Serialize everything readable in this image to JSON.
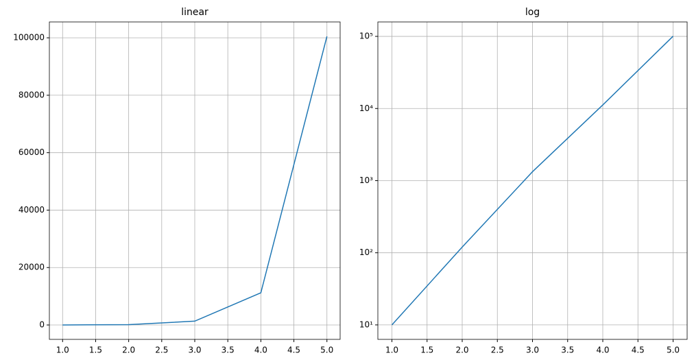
{
  "chart_data": [
    {
      "type": "line",
      "title": "linear",
      "yscale": "linear",
      "grid": true,
      "x": [
        1,
        2,
        3,
        4,
        5
      ],
      "series": [
        {
          "name": null,
          "color": "#1f77b4",
          "values": [
            10,
            120,
            1330,
            11200,
            100500
          ]
        }
      ],
      "xlim": [
        0.8,
        5.2
      ],
      "xticks": [
        {
          "value": 1,
          "label": "1.0"
        },
        1.5,
        {
          "value": 2,
          "label": "2.0"
        },
        2.5,
        {
          "value": 3,
          "label": "3.0"
        },
        3.5,
        {
          "value": 4,
          "label": "4.0"
        },
        4.5,
        {
          "value": 5,
          "label": "5.0"
        }
      ],
      "ylim": [
        -5014,
        105524
      ],
      "yticks": [
        0,
        20000,
        40000,
        60000,
        80000,
        100000
      ]
    },
    {
      "type": "line",
      "title": "log",
      "yscale": "log",
      "grid": true,
      "x": [
        1,
        2,
        3,
        4,
        5
      ],
      "series": [
        {
          "name": null,
          "color": "#1f77b4",
          "values": [
            10,
            120,
            1330,
            11200,
            100500
          ]
        }
      ],
      "xlim": [
        0.8,
        5.2
      ],
      "xticks": [
        {
          "value": 1,
          "label": "1.0"
        },
        1.5,
        {
          "value": 2,
          "label": "2.0"
        },
        2.5,
        {
          "value": 3,
          "label": "3.0"
        },
        3.5,
        {
          "value": 4,
          "label": "4.0"
        },
        4.5,
        {
          "value": 5,
          "label": "5.0"
        }
      ],
      "ylim": [
        6.3,
        158500
      ],
      "yticks": [
        {
          "value": 10,
          "label": "10¹"
        },
        {
          "value": 100,
          "label": "10²"
        },
        {
          "value": 1000,
          "label": "10³"
        },
        {
          "value": 10000,
          "label": "10⁴"
        },
        {
          "value": 100000,
          "label": "10⁵"
        }
      ]
    }
  ]
}
